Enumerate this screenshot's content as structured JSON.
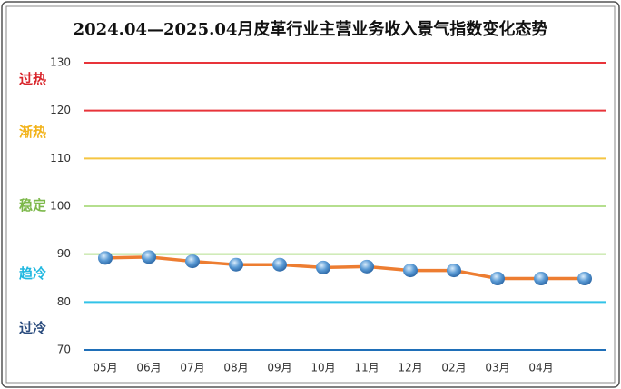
{
  "chart_data": {
    "type": "line",
    "title": "2024.04—2025.04月皮革行业主营业务收入景气指数变化态势",
    "categories": [
      "05月",
      "06月",
      "07月",
      "08月",
      "09月",
      "10月",
      "11月",
      "12月",
      "02月",
      "03月",
      "04月",
      null
    ],
    "series": [
      {
        "name": "景气指数",
        "color": "#ed7d31",
        "values": [
          89.2,
          89.4,
          88.5,
          87.8,
          87.8,
          87.2,
          87.4,
          86.6,
          86.6,
          84.9,
          84.9,
          84.9
        ]
      }
    ],
    "ylim": [
      70,
      130
    ],
    "yticks": [
      70,
      80,
      90,
      100,
      110,
      120,
      130
    ],
    "grid": true,
    "grid_colors": [
      "#1f6fb8",
      "#33c3e8",
      "#b5df8e",
      "#b5df8e",
      "#f5c542",
      "#e8343a",
      "#e8343a"
    ],
    "bands": [
      {
        "name": "过热",
        "color": "#d9262c"
      },
      {
        "name": "渐热",
        "color": "#f2b31b"
      },
      {
        "name": "稳定",
        "color": "#7cb84a"
      },
      {
        "name": "趋冷",
        "color": "#22b8e0"
      },
      {
        "name": "过冷",
        "color": "#2b4c7e"
      }
    ]
  }
}
